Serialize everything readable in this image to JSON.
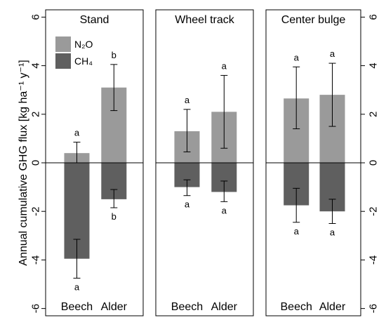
{
  "chart_data": {
    "type": "bar",
    "ylabel": "Annual cumulative GHG flux  [kg ha⁻¹ y⁻¹]",
    "ylim": [
      -6.3,
      6.3
    ],
    "yticks": [
      -6,
      -4,
      -2,
      0,
      2,
      4,
      6
    ],
    "yaxis_sides": [
      "left",
      "right"
    ],
    "grid": false,
    "legend": {
      "placement": "top-left of first panel",
      "entries": [
        {
          "name": "N₂O",
          "color": "#9a9a9a"
        },
        {
          "name": "CH₄",
          "color": "#5f5f5f"
        }
      ]
    },
    "series_colors": {
      "n2o": "#9a9a9a",
      "ch4": "#5f5f5f"
    },
    "panels": [
      {
        "title": "Stand",
        "categories": [
          "Beech",
          "Alder"
        ],
        "series": [
          {
            "name": "N₂O",
            "key": "n2o",
            "values": [
              0.4,
              3.1
            ],
            "err_low": [
              -0.35,
              2.15
            ],
            "err_high": [
              0.85,
              4.05
            ],
            "letters": [
              "a",
              "b"
            ]
          },
          {
            "name": "CH₄",
            "key": "ch4",
            "values": [
              -3.95,
              -1.5
            ],
            "err_low": [
              -4.75,
              -1.85
            ],
            "err_high": [
              -3.15,
              -1.1
            ],
            "letters": [
              "a",
              "b"
            ]
          }
        ]
      },
      {
        "title": "Wheel track",
        "categories": [
          "Beech",
          "Alder"
        ],
        "series": [
          {
            "name": "N₂O",
            "key": "n2o",
            "values": [
              1.3,
              2.1
            ],
            "err_low": [
              0.45,
              0.6
            ],
            "err_high": [
              2.2,
              3.6
            ],
            "letters": [
              "a",
              "a"
            ]
          },
          {
            "name": "CH₄",
            "key": "ch4",
            "values": [
              -1.0,
              -1.2
            ],
            "err_low": [
              -1.35,
              -1.6
            ],
            "err_high": [
              -0.7,
              -0.75
            ],
            "letters": [
              "a",
              "a"
            ]
          }
        ]
      },
      {
        "title": "Center bulge",
        "categories": [
          "Beech",
          "Alder"
        ],
        "series": [
          {
            "name": "N₂O",
            "key": "n2o",
            "values": [
              2.65,
              2.8
            ],
            "err_low": [
              1.4,
              1.5
            ],
            "err_high": [
              3.95,
              4.1
            ],
            "letters": [
              "a",
              "a"
            ]
          },
          {
            "name": "CH₄",
            "key": "ch4",
            "values": [
              -1.75,
              -2.0
            ],
            "err_low": [
              -2.45,
              -2.5
            ],
            "err_high": [
              -1.05,
              -1.5
            ],
            "letters": [
              "a",
              "a"
            ]
          }
        ]
      }
    ]
  }
}
